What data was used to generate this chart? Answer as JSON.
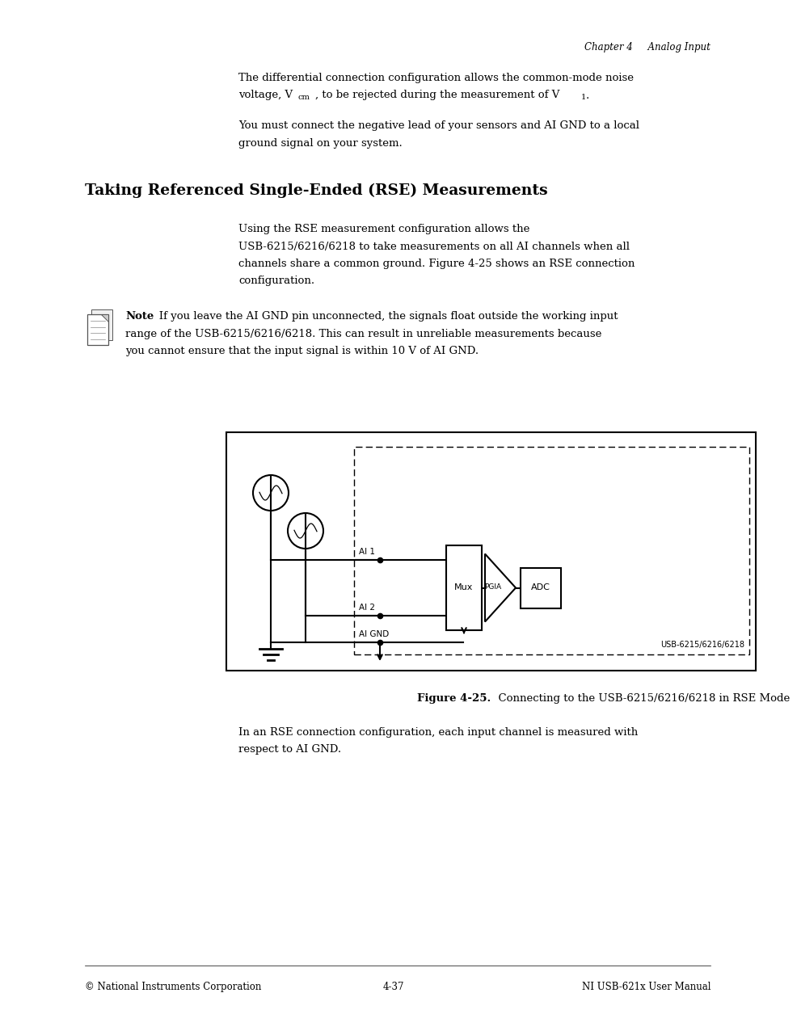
{
  "bg_color": "#ffffff",
  "page_width": 9.54,
  "page_height": 12.35,
  "header_text": "Chapter 4     Analog Input",
  "para1_line1": "The differential connection configuration allows the common-mode noise",
  "para1_line2_pre": "voltage, V",
  "para1_sub_cm": "cm",
  "para1_line2_mid": ", to be rejected during the measurement of V",
  "para1_sub_1": "1",
  "para1_dot": ".",
  "para2_line1": "You must connect the negative lead of your sensors and AI GND to a local",
  "para2_line2": "ground signal on your system.",
  "section_title": "Taking Referenced Single-Ended (RSE) Measurements",
  "body_line1": "Using the RSE measurement configuration allows the",
  "body_line2": "USB-6215/6216/6218 to take measurements on all AI channels when all",
  "body_line3": "channels share a common ground. Figure 4-25 shows an RSE connection",
  "body_line4": "configuration.",
  "note_bold": "Note",
  "note_text1": "   If you leave the AI GND pin unconnected, the signals float outside the working input",
  "note_text2": "range of the USB-6215/6216/6218. This can result in unreliable measurements because",
  "note_text3": "you cannot ensure that the input signal is within 10 V of AI GND.",
  "fig_caption_bold": "Figure 4-25.",
  "fig_caption_text": "  Connecting to the USB-6215/6216/6218 in RSE Mode",
  "after_fig_line1": "In an RSE connection configuration, each input channel is measured with",
  "after_fig_line2": "respect to AI GND.",
  "footer_left": "© National Instruments Corporation",
  "footer_center": "4-37",
  "footer_right": "NI USB-621x User Manual",
  "lm": 0.95,
  "bi": 2.85,
  "fs": 9.5,
  "fs_hdr": 8.5,
  "fs_sec": 13.5,
  "fs_ftr": 8.5
}
